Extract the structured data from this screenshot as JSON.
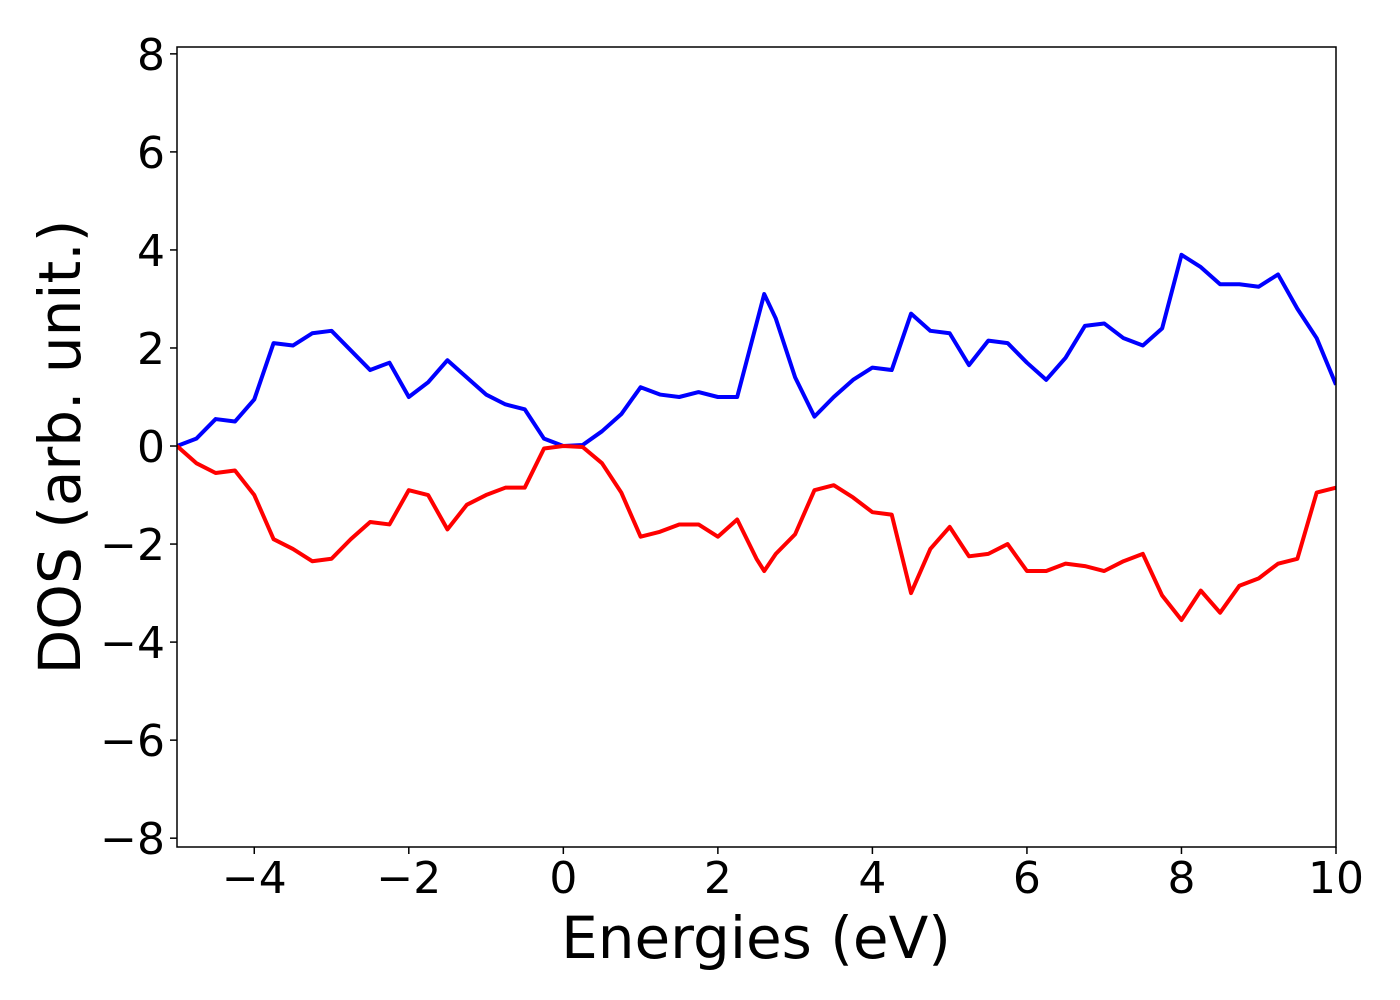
{
  "chart_data": {
    "type": "line",
    "x_label": "Energies (eV)",
    "y_label": "DOS (arb. unit.)",
    "xlim": [
      -5,
      10
    ],
    "ylim": [
      -8.18,
      8.14
    ],
    "xticks": [
      {
        "value": -4,
        "label": "−4"
      },
      {
        "value": -2,
        "label": "−2"
      },
      0,
      2,
      4,
      6,
      8,
      10
    ],
    "yticks": [
      {
        "value": -8,
        "label": "−8"
      },
      {
        "value": -6,
        "label": "−6"
      },
      {
        "value": -4,
        "label": "−4"
      },
      {
        "value": -2,
        "label": "−2"
      },
      0,
      2,
      4,
      6,
      8
    ],
    "grid": false,
    "x": [
      -5,
      -4.75,
      -4.5,
      -4.25,
      -4,
      -3.75,
      -3.5,
      -3.25,
      -3,
      -2.75,
      -2.5,
      -2.25,
      -2,
      -1.75,
      -1.5,
      -1.25,
      -1,
      -0.75,
      -0.5,
      -0.25,
      0,
      0.25,
      0.5,
      0.75,
      1,
      1.25,
      1.5,
      1.75,
      2,
      2.25,
      2.5,
      2.6,
      2.75,
      3,
      3.25,
      3.5,
      3.75,
      4,
      4.25,
      4.5,
      4.75,
      5,
      5.25,
      5.5,
      5.75,
      6,
      6.25,
      6.5,
      6.75,
      7,
      7.25,
      7.5,
      7.75,
      8,
      8.25,
      8.5,
      8.75,
      9,
      9.25,
      9.5,
      9.75,
      10
    ],
    "series": [
      {
        "color": "#0000ff",
        "values": [
          0,
          0.15,
          0.55,
          0.5,
          0.95,
          2.1,
          2.05,
          2.3,
          2.35,
          1.95,
          1.55,
          1.7,
          1.0,
          1.3,
          1.75,
          1.4,
          1.05,
          0.85,
          0.75,
          0.15,
          0,
          0.02,
          0.3,
          0.65,
          1.2,
          1.05,
          1.0,
          1.1,
          1.0,
          1.0,
          2.5,
          3.1,
          2.6,
          1.4,
          0.6,
          1.0,
          1.35,
          1.6,
          1.55,
          2.7,
          2.35,
          2.3,
          1.65,
          2.15,
          2.1,
          1.7,
          1.35,
          1.8,
          2.45,
          2.5,
          2.2,
          2.05,
          2.4,
          3.9,
          3.65,
          3.3,
          3.3,
          3.25,
          3.5,
          2.8,
          2.2,
          1.25
        ]
      },
      {
        "color": "#ff0000",
        "values": [
          0,
          -0.35,
          -0.55,
          -0.5,
          -1.0,
          -1.9,
          -2.1,
          -2.35,
          -2.3,
          -1.9,
          -1.55,
          -1.6,
          -0.9,
          -1.0,
          -1.7,
          -1.2,
          -1.0,
          -0.85,
          -0.85,
          -0.05,
          0,
          -0.02,
          -0.35,
          -0.95,
          -1.85,
          -1.75,
          -1.6,
          -1.6,
          -1.85,
          -1.5,
          -2.3,
          -2.55,
          -2.2,
          -1.8,
          -0.9,
          -0.8,
          -1.05,
          -1.35,
          -1.4,
          -3.0,
          -2.1,
          -1.65,
          -2.25,
          -2.2,
          -2.0,
          -2.55,
          -2.55,
          -2.4,
          -2.45,
          -2.55,
          -2.35,
          -2.2,
          -3.05,
          -3.55,
          -2.95,
          -3.4,
          -2.85,
          -2.7,
          -2.4,
          -2.3,
          -0.95,
          -0.85
        ]
      }
    ]
  }
}
